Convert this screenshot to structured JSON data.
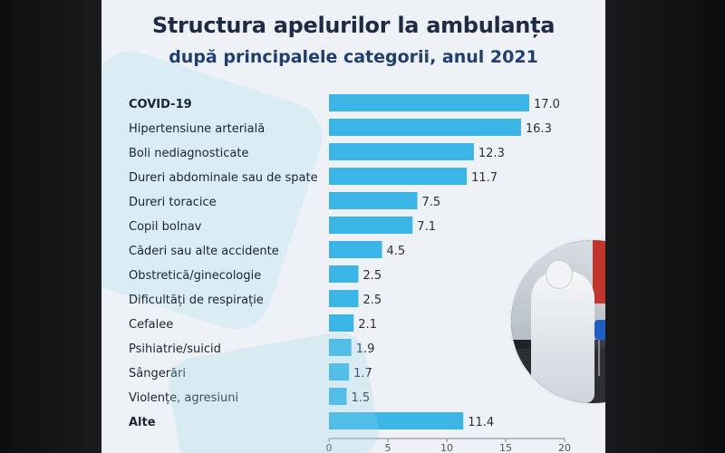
{
  "title": "Structura apelurilor la ambulanța",
  "subtitle": "după principalele categorii, anul 2021",
  "colors": {
    "bar": "#3bb4e6",
    "panel": "#eef2f6",
    "title": "#1f2a44"
  },
  "photo": {
    "icon": "paramedic-ambulance-photo"
  },
  "chart_data": {
    "type": "bar",
    "orientation": "horizontal",
    "title": "Structura apelurilor la ambulanța",
    "subtitle": "după principalele categorii, anul 2021",
    "xlim": [
      0,
      20
    ],
    "xticks": [
      0,
      5,
      10,
      15,
      20
    ],
    "grid": false,
    "categories": [
      "COVID-19",
      "Hipertensiune arterială",
      "Boli nediagnosticate",
      "Dureri abdominale sau de spate",
      "Dureri toracice",
      "Copil bolnav",
      "Căderi sau alte accidente",
      "Obstretică/ginecologie",
      "Dificultăți de respirație",
      "Cefalee",
      "Psihiatrie/suicid",
      "Sângerări",
      "Violențe, agresiuni",
      "Alte"
    ],
    "values": [
      17.0,
      16.3,
      12.3,
      11.7,
      7.5,
      7.1,
      4.5,
      2.5,
      2.5,
      2.1,
      1.9,
      1.7,
      1.5,
      11.4
    ],
    "value_labels": [
      "17.0",
      "16.3",
      "12.3",
      "11.7",
      "7.5",
      "7.1",
      "4.5",
      "2.5",
      "2.5",
      "2.1",
      "1.9",
      "1.7",
      "1.5",
      "11.4"
    ],
    "bold_categories": [
      "COVID-19",
      "Alte"
    ]
  }
}
